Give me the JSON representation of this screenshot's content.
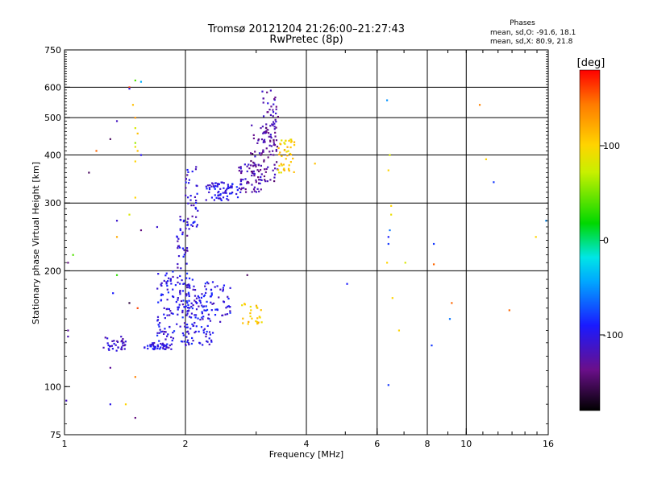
{
  "chart_data": {
    "type": "scatter",
    "title": "Tromsø 20121204 21:26:00–21:27:43",
    "subtitle": "RwPretec (8p)",
    "xlabel": "Frequency [MHz]",
    "ylabel": "Stationary phase Virtual Height [km]",
    "xscale": "log",
    "yscale": "log",
    "xlim": [
      1,
      16
    ],
    "ylim": [
      75,
      750
    ],
    "xticks": [
      1,
      2,
      4,
      6,
      8,
      10,
      16
    ],
    "xtick_labels": [
      "1",
      "2",
      "4",
      "6",
      "8",
      "10",
      "16"
    ],
    "xgrid": [
      2,
      4,
      6,
      8,
      10
    ],
    "yticks": [
      75,
      100,
      200,
      300,
      400,
      500,
      600,
      750
    ],
    "ytick_labels": [
      "75",
      "100",
      "200",
      "300",
      "400",
      "500",
      "600",
      "750"
    ],
    "ygrid": [
      200,
      300,
      400,
      500,
      600
    ],
    "grid": true,
    "stats": {
      "title": "Phases",
      "line1": "mean, sd,O: -91.6, 18.1",
      "line2": "mean, sd,X:  80.9, 21.8"
    },
    "colorbar": {
      "label": "[deg]",
      "range": [
        -180,
        180
      ],
      "ticks": [
        100,
        0,
        -100
      ],
      "tick_labels": [
        "100",
        "0",
        "-100"
      ],
      "colormap": "rainbow"
    },
    "phase_note": "color encodes phase in degrees",
    "clusters": [
      {
        "f": [
          1.25,
          1.42
        ],
        "h": [
          123,
          135
        ],
        "phase": -110,
        "n": 35
      },
      {
        "f": [
          1.58,
          1.85
        ],
        "h": [
          125,
          130
        ],
        "phase": -105,
        "n": 45
      },
      {
        "f": [
          1.7,
          2.05
        ],
        "h": [
          130,
          200
        ],
        "phase": -100,
        "n": 130
      },
      {
        "f": [
          2.0,
          2.35
        ],
        "h": [
          128,
          190
        ],
        "phase": -100,
        "n": 120
      },
      {
        "f": [
          2.35,
          2.6
        ],
        "h": [
          145,
          185
        ],
        "phase": -100,
        "n": 30
      },
      {
        "f": [
          1.9,
          2.05
        ],
        "h": [
          200,
          280
        ],
        "phase": -108,
        "n": 35
      },
      {
        "f": [
          2.0,
          2.15
        ],
        "h": [
          260,
          375
        ],
        "phase": -105,
        "n": 40
      },
      {
        "f": [
          2.25,
          2.7
        ],
        "h": [
          305,
          340
        ],
        "phase": -100,
        "n": 70
      },
      {
        "f": [
          2.7,
          3.1
        ],
        "h": [
          320,
          380
        ],
        "phase": -120,
        "n": 60
      },
      {
        "f": [
          2.9,
          3.4
        ],
        "h": [
          340,
          480
        ],
        "phase": -128,
        "n": 80
      },
      {
        "f": [
          3.1,
          3.4
        ],
        "h": [
          420,
          590
        ],
        "phase": -122,
        "n": 50
      },
      {
        "f": [
          3.4,
          3.75
        ],
        "h": [
          360,
          440
        ],
        "phase": 100,
        "n": 45
      },
      {
        "f": [
          2.75,
          3.1
        ],
        "h": [
          145,
          165
        ],
        "phase": 105,
        "n": 25
      }
    ],
    "points": [
      {
        "x": 1.02,
        "y": 210,
        "phase": -140
      },
      {
        "x": 1.05,
        "y": 220,
        "phase": 40
      },
      {
        "x": 1.02,
        "y": 140,
        "phase": -130
      },
      {
        "x": 1.02,
        "y": 135,
        "phase": -120
      },
      {
        "x": 1.01,
        "y": 92,
        "phase": -115
      },
      {
        "x": 1.15,
        "y": 360,
        "phase": -150
      },
      {
        "x": 1.2,
        "y": 410,
        "phase": 150
      },
      {
        "x": 1.3,
        "y": 440,
        "phase": -150
      },
      {
        "x": 1.35,
        "y": 490,
        "phase": -115
      },
      {
        "x": 1.35,
        "y": 270,
        "phase": -110
      },
      {
        "x": 1.35,
        "y": 245,
        "phase": 120
      },
      {
        "x": 1.35,
        "y": 195,
        "phase": 30
      },
      {
        "x": 1.32,
        "y": 175,
        "phase": -90
      },
      {
        "x": 1.45,
        "y": 600,
        "phase": 160
      },
      {
        "x": 1.45,
        "y": 595,
        "phase": -100
      },
      {
        "x": 1.5,
        "y": 625,
        "phase": 40
      },
      {
        "x": 1.55,
        "y": 620,
        "phase": -40
      },
      {
        "x": 1.48,
        "y": 540,
        "phase": 110
      },
      {
        "x": 1.5,
        "y": 500,
        "phase": 130
      },
      {
        "x": 1.5,
        "y": 470,
        "phase": 80
      },
      {
        "x": 1.52,
        "y": 455,
        "phase": 110
      },
      {
        "x": 1.5,
        "y": 430,
        "phase": 60
      },
      {
        "x": 1.5,
        "y": 420,
        "phase": 90
      },
      {
        "x": 1.52,
        "y": 410,
        "phase": 110
      },
      {
        "x": 1.55,
        "y": 400,
        "phase": -100
      },
      {
        "x": 1.5,
        "y": 385,
        "phase": 100
      },
      {
        "x": 1.5,
        "y": 310,
        "phase": 100
      },
      {
        "x": 1.45,
        "y": 280,
        "phase": 80
      },
      {
        "x": 1.55,
        "y": 255,
        "phase": -140
      },
      {
        "x": 1.45,
        "y": 165,
        "phase": -160
      },
      {
        "x": 1.52,
        "y": 160,
        "phase": 160
      },
      {
        "x": 1.3,
        "y": 112,
        "phase": -130
      },
      {
        "x": 1.5,
        "y": 106,
        "phase": 140
      },
      {
        "x": 1.3,
        "y": 90,
        "phase": -100
      },
      {
        "x": 1.42,
        "y": 90,
        "phase": 100
      },
      {
        "x": 1.5,
        "y": 83,
        "phase": -140
      },
      {
        "x": 1.7,
        "y": 260,
        "phase": -110
      },
      {
        "x": 2.85,
        "y": 195,
        "phase": -150
      },
      {
        "x": 4.2,
        "y": 380,
        "phase": 110
      },
      {
        "x": 5.05,
        "y": 185,
        "phase": -90
      },
      {
        "x": 6.35,
        "y": 555,
        "phase": -50
      },
      {
        "x": 6.45,
        "y": 400,
        "phase": 80
      },
      {
        "x": 6.4,
        "y": 365,
        "phase": 100
      },
      {
        "x": 6.5,
        "y": 295,
        "phase": 100
      },
      {
        "x": 6.5,
        "y": 280,
        "phase": 90
      },
      {
        "x": 6.45,
        "y": 255,
        "phase": -60
      },
      {
        "x": 6.4,
        "y": 245,
        "phase": -90
      },
      {
        "x": 6.4,
        "y": 235,
        "phase": -80
      },
      {
        "x": 6.35,
        "y": 210,
        "phase": 100
      },
      {
        "x": 6.55,
        "y": 170,
        "phase": 100
      },
      {
        "x": 6.8,
        "y": 140,
        "phase": 100
      },
      {
        "x": 7.05,
        "y": 210,
        "phase": 80
      },
      {
        "x": 6.4,
        "y": 101,
        "phase": -80
      },
      {
        "x": 8.3,
        "y": 235,
        "phase": -80
      },
      {
        "x": 8.3,
        "y": 208,
        "phase": 150
      },
      {
        "x": 8.2,
        "y": 128,
        "phase": -80
      },
      {
        "x": 9.2,
        "y": 165,
        "phase": 150
      },
      {
        "x": 9.1,
        "y": 150,
        "phase": -60
      },
      {
        "x": 10.8,
        "y": 540,
        "phase": 140
      },
      {
        "x": 11.2,
        "y": 390,
        "phase": 100
      },
      {
        "x": 11.7,
        "y": 340,
        "phase": -80
      },
      {
        "x": 12.8,
        "y": 158,
        "phase": 150
      },
      {
        "x": 14.9,
        "y": 245,
        "phase": 100
      },
      {
        "x": 15.8,
        "y": 270,
        "phase": -50
      }
    ]
  }
}
